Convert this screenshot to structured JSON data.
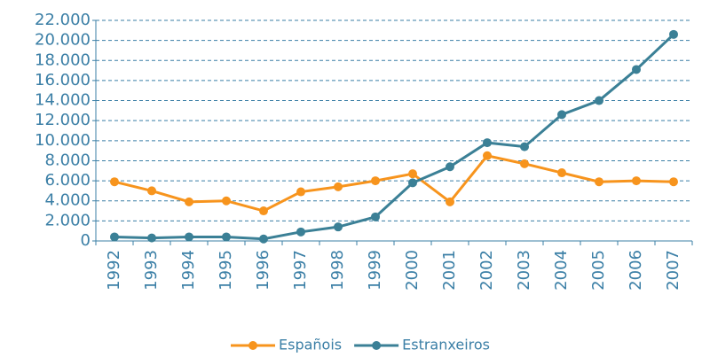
{
  "chart_data": {
    "type": "line",
    "categories": [
      "1992",
      "1993",
      "1994",
      "1995",
      "1996",
      "1997",
      "1998",
      "1999",
      "2000",
      "2001",
      "2002",
      "2003",
      "2004",
      "2005",
      "2006",
      "2007"
    ],
    "series": [
      {
        "name": "Españois",
        "color": "#f7941d",
        "values": [
          5900,
          5000,
          3900,
          4000,
          3000,
          4900,
          5400,
          6000,
          6700,
          3900,
          8500,
          7700,
          6800,
          5900,
          6000,
          5900
        ]
      },
      {
        "name": "Estranxeiros",
        "color": "#3b8096",
        "values": [
          400,
          300,
          400,
          400,
          200,
          900,
          1400,
          2400,
          5800,
          7400,
          9800,
          9400,
          12600,
          14000,
          17100,
          20600
        ]
      }
    ],
    "ylim": [
      0,
      22000
    ],
    "yticks": [
      0,
      {
        "value": 2000,
        "label": "2.000"
      },
      {
        "value": 4000,
        "label": "4.000"
      },
      {
        "value": 6000,
        "label": "6.000"
      },
      {
        "value": 8000,
        "label": "8.000"
      },
      {
        "value": 10000,
        "label": "10.000"
      },
      {
        "value": 12000,
        "label": "12.000"
      },
      {
        "value": 14000,
        "label": "14.000"
      },
      {
        "value": 16000,
        "label": "16.000"
      },
      {
        "value": 18000,
        "label": "18.000"
      },
      {
        "value": 20000,
        "label": "20.000"
      },
      {
        "value": 22000,
        "label": "22.000"
      }
    ],
    "grid": true,
    "legend": "bottom"
  }
}
